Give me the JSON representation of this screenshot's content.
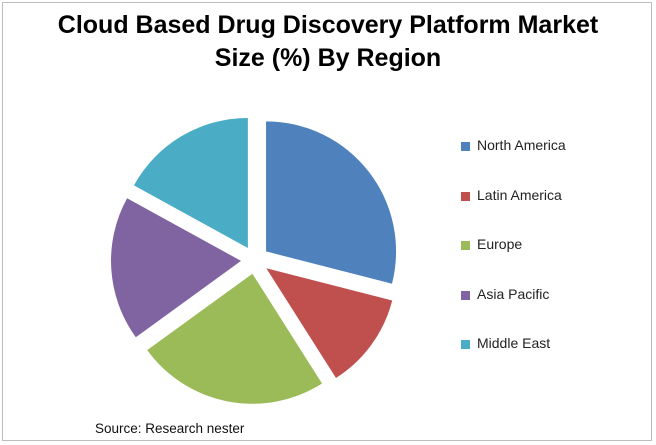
{
  "chart_data": {
    "type": "pie",
    "title_lines": [
      "Cloud Based Drug Discovery Platform Market",
      "Size (%) By Region"
    ],
    "slices": [
      {
        "label": "North America",
        "value": 29,
        "color": "#4F81BD"
      },
      {
        "label": "Latin America",
        "value": 12,
        "color": "#C0504D"
      },
      {
        "label": "Europe",
        "value": 24,
        "color": "#9BBB59"
      },
      {
        "label": "Asia Pacific",
        "value": 18,
        "color": "#8064A2"
      },
      {
        "label": "Middle East",
        "value": 17,
        "color": "#4BACC6"
      }
    ],
    "exploded": true,
    "legend_position": "right",
    "source": "Source: Research nester"
  }
}
